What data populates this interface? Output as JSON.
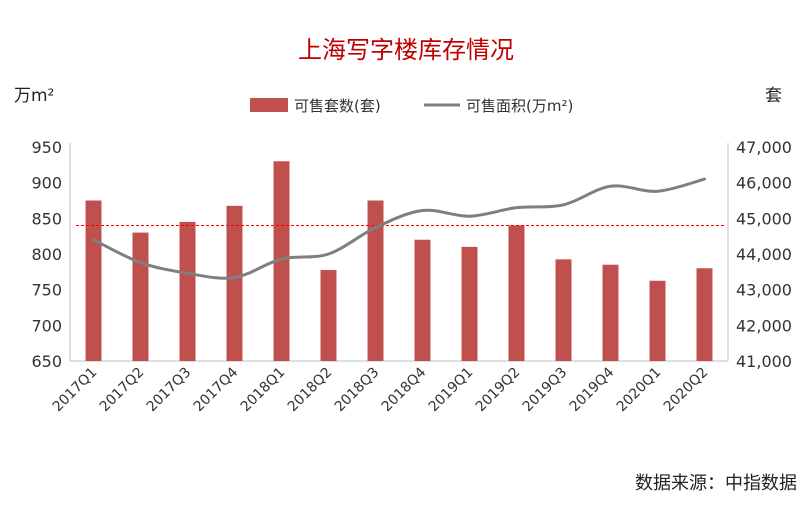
{
  "chart_data": {
    "type": "bar",
    "title": "上海写字楼库存情况",
    "left_unit": "万m²",
    "right_unit": "套",
    "source": "数据来源：中指数据",
    "categories": [
      "2017Q1",
      "2017Q2",
      "2017Q3",
      "2017Q4",
      "2018Q1",
      "2018Q2",
      "2018Q3",
      "2018Q4",
      "2019Q1",
      "2019Q2",
      "2019Q3",
      "2019Q4",
      "2020Q1",
      "2020Q2"
    ],
    "left_axis": {
      "min": 650,
      "max": 950,
      "step": 50,
      "tick_labels": [
        "650",
        "700",
        "750",
        "800",
        "850",
        "900",
        "950"
      ]
    },
    "right_axis": {
      "min": 41000,
      "max": 47000,
      "step": 1000,
      "tick_labels": [
        "41,000",
        "42,000",
        "43,000",
        "44,000",
        "45,000",
        "46,000",
        "47,000"
      ]
    },
    "series": [
      {
        "name": "可售套数(套)",
        "type": "bar",
        "axis": "right",
        "color": "#c0504d",
        "values": [
          45500,
          44600,
          44900,
          45350,
          46600,
          43550,
          45500,
          44400,
          44200,
          44800,
          43850,
          43700,
          43250,
          43600
        ]
      },
      {
        "name": "可售面积(万m²)",
        "type": "line",
        "axis": "left",
        "color": "#7f7f7f",
        "values": [
          820,
          788,
          773,
          767,
          793,
          800,
          837,
          861,
          853,
          865,
          869,
          895,
          888,
          905
        ]
      }
    ],
    "reference_line": {
      "axis": "left",
      "value": 840,
      "color": "#ff0000",
      "style": "dashed"
    },
    "legend": "top",
    "grid": false
  }
}
